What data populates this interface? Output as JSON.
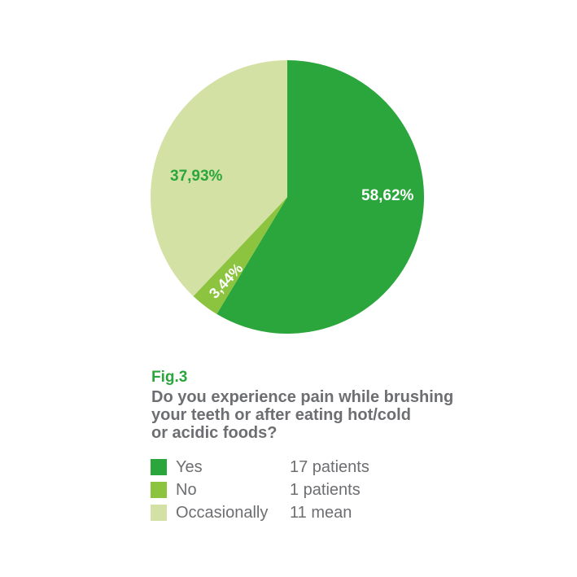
{
  "figure": {
    "label": "Fig.3",
    "question_lines": [
      "Do you experience pain while brushing",
      "your teeth or after eating hot/cold",
      "or acidic foods?"
    ]
  },
  "chart_data": {
    "type": "pie",
    "title": "Fig.3",
    "question": "Do you experience pain while brushing your teeth or after eating hot/cold or acidic foods?",
    "start_angle": "12-o-clock",
    "direction": "clockwise",
    "legend_position": "bottom-left",
    "slices": [
      {
        "label": "Yes",
        "value": 58.62,
        "value_display": "58,62%",
        "count_label": "17 patients",
        "color": "#2aa63c",
        "label_color": "#ffffff"
      },
      {
        "label": "No",
        "value": 3.44,
        "value_display": "3,44%",
        "count_label": "1 patients",
        "color": "#8cc33f",
        "label_color": "#ffffff"
      },
      {
        "label": "Occasionally",
        "value": 37.93,
        "value_display": "37,93%",
        "count_label": "11 mean",
        "color": "#d3e2a4",
        "label_color": "#2aa63c"
      }
    ]
  },
  "colors": {
    "background": "#ffffff",
    "figure_label": "#2aa63c",
    "question_text": "#6d6e71",
    "legend_text": "#6d6e71"
  }
}
